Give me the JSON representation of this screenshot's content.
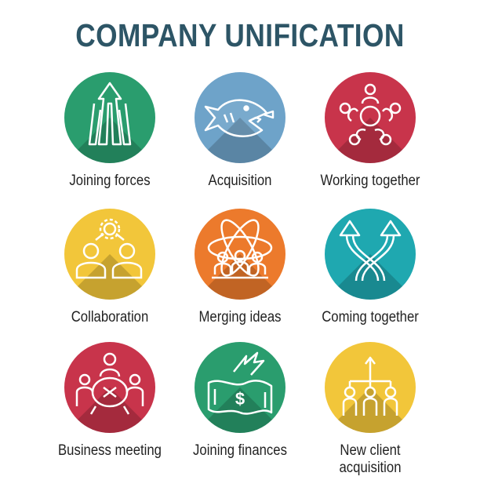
{
  "title": "COMPANY UNIFICATION",
  "icons": [
    {
      "label": "Joining forces",
      "color": "#2a9d6e",
      "icon": "converging-arrows-icon"
    },
    {
      "label": "Acquisition",
      "color": "#6ea3c9",
      "icon": "big-fish-eating-small-fish-icon"
    },
    {
      "label": "Working together",
      "color": "#c8344b",
      "icon": "people-circle-icon"
    },
    {
      "label": "Collaboration",
      "color": "#f2c63a",
      "icon": "two-people-gear-icon"
    },
    {
      "label": "Merging ideas",
      "color": "#ec7a2c",
      "icon": "atom-team-icon"
    },
    {
      "label": "Coming together",
      "color": "#1fa8b0",
      "icon": "crossing-arrows-icon"
    },
    {
      "label": "Business meeting",
      "color": "#c8344b",
      "icon": "meeting-table-icon"
    },
    {
      "label": "Joining finances",
      "color": "#2a9d6e",
      "icon": "money-growth-icon"
    },
    {
      "label": "New client\nacquisition",
      "color": "#f2c63a",
      "icon": "client-hierarchy-icon"
    }
  ]
}
